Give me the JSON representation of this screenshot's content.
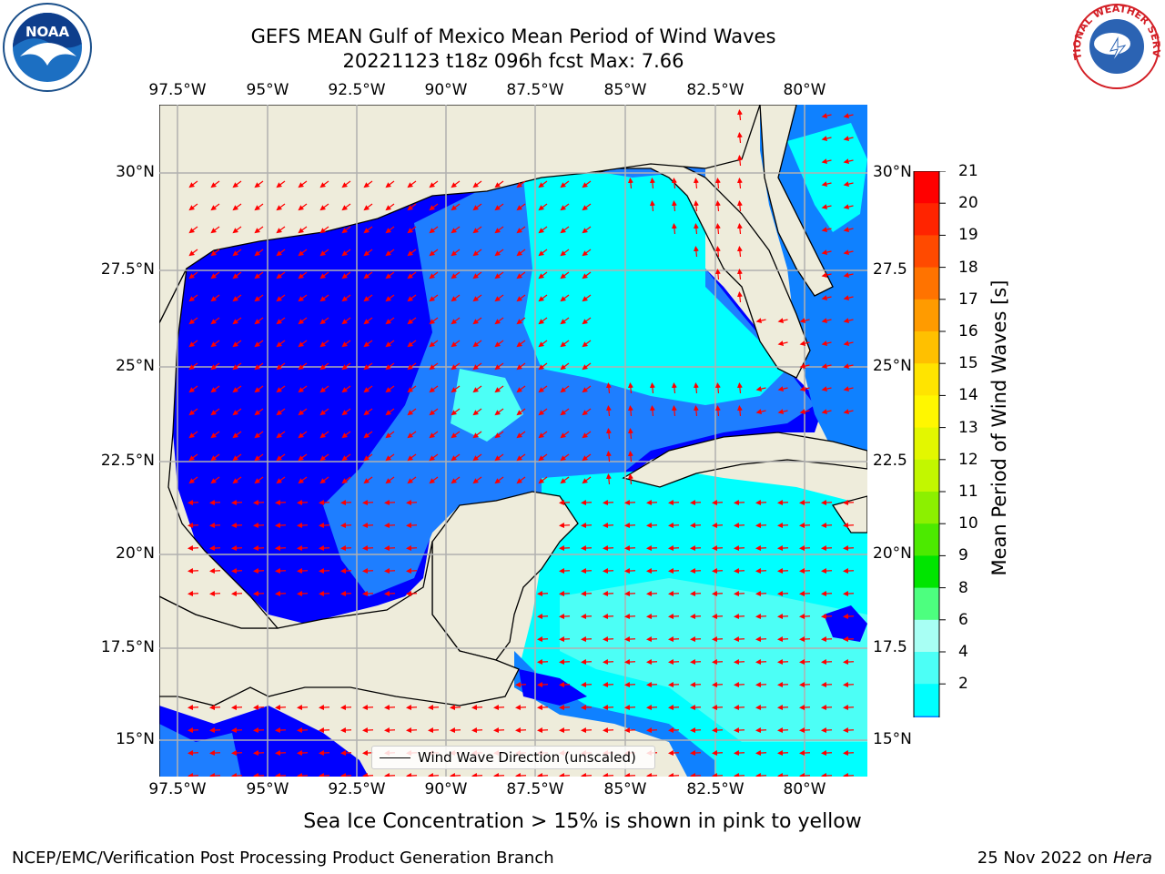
{
  "header": {
    "title_line1": "GEFS MEAN Gulf of Mexico Mean Period of Wind Waves",
    "title_line2": "20221123 t18z 096h fcst   Max: 7.66"
  },
  "logos": {
    "noaa": {
      "icon": "noaa-logo",
      "text": "NOAA"
    },
    "nws": {
      "icon": "nws-logo",
      "text": "NATIONAL WEATHER SERVICE"
    }
  },
  "map": {
    "lon_labels": [
      "97.5°W",
      "95°W",
      "92.5°W",
      "90°W",
      "87.5°W",
      "85°W",
      "82.5°W",
      "80°W"
    ],
    "lat_labels_left": [
      "30°N",
      "27.5°N",
      "25°N",
      "22.5°N",
      "20°N",
      "17.5°N",
      "15°N"
    ],
    "lat_labels_right": [
      "30°N",
      "27.5",
      "25°N",
      "22.5",
      "20°N",
      "17.5",
      "15°N"
    ],
    "legend_label": "Wind Wave Direction (unscaled)",
    "colors": {
      "land": "#eeecdb",
      "grid": "#b0b0b0",
      "arrow": "#ff0000"
    }
  },
  "colorbar": {
    "title": "Mean Period of Wind Waves [s]",
    "labels": [
      "21",
      "20",
      "19",
      "18",
      "17",
      "16",
      "15",
      "14",
      "13",
      "12",
      "11",
      "10",
      "9",
      "8",
      "6",
      "4",
      "2"
    ],
    "colors": [
      "#ff0000",
      "#ff2400",
      "#ff4a00",
      "#ff7300",
      "#ff9b00",
      "#ffc000",
      "#ffe400",
      "#fff700",
      "#e3f700",
      "#c2f700",
      "#8cf000",
      "#4cea00",
      "#00e500",
      "#4dff7f",
      "#a8fff4",
      "#4cfff6",
      "#00ffff",
      "#0f81ff",
      "#0000ff"
    ]
  },
  "footer": {
    "subtitle": "Sea Ice Concentration > 15% is shown in pink to yellow",
    "left": "NCEP/EMC/Verification Post Processing Product Generation Branch",
    "right_date": "25 Nov 2022 on ",
    "right_host": "Hera"
  }
}
